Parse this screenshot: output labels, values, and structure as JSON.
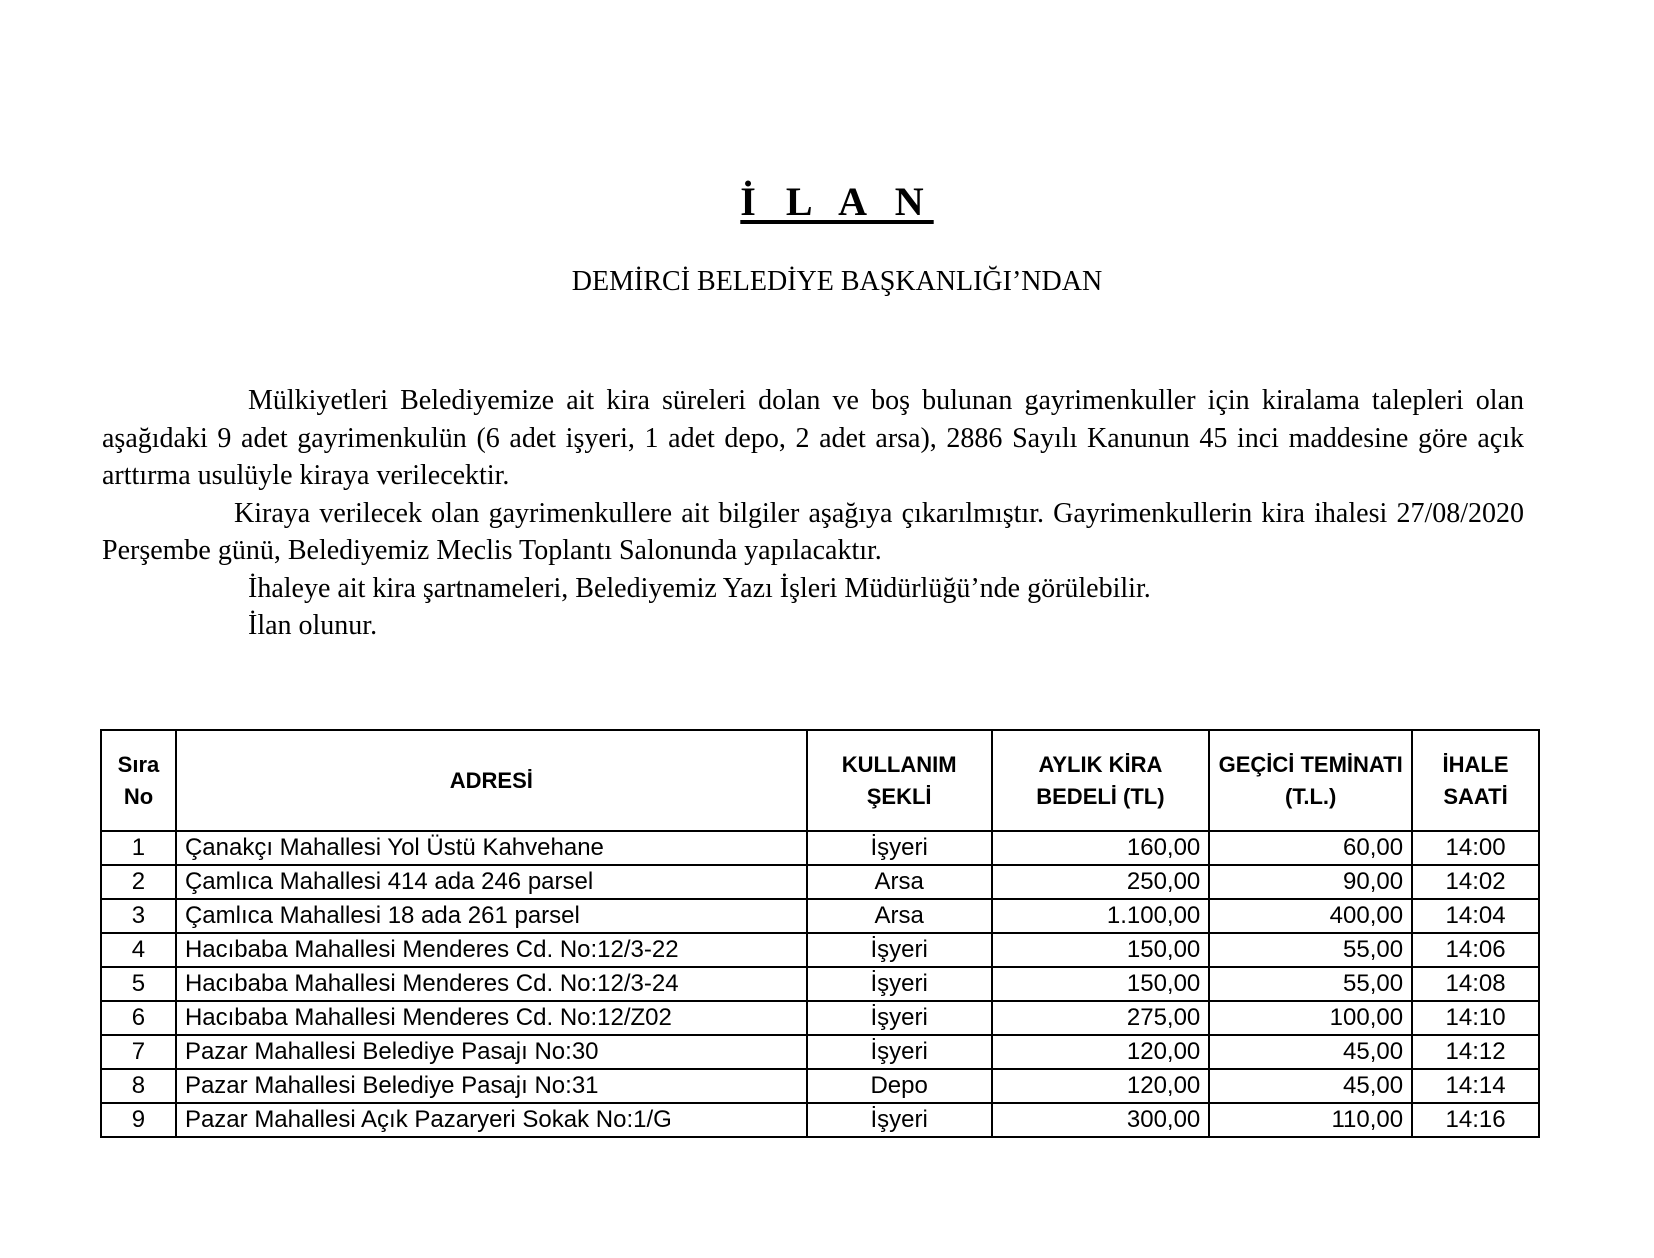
{
  "title": "İ L A N",
  "subtitle": "DEMİRCİ BELEDİYE BAŞKANLIĞI’NDAN",
  "paragraphs": [
    "Mülkiyetleri Belediyemize ait kira süreleri dolan ve boş bulunan gayrimenkuller için kiralama talepleri olan aşağıdaki 9 adet gayrimenkulün (6 adet işyeri, 1 adet depo, 2 adet arsa), 2886 Sayılı Kanunun 45 inci maddesine göre açık arttırma usulüyle kiraya verilecektir.",
    "Kiraya verilecek olan gayrimenkullere ait bilgiler aşağıya çıkarılmıştır. Gayrimenkullerin kira ihalesi 27/08/2020 Perşembe günü, Belediyemiz Meclis Toplantı Salonunda yapılacaktır.",
    "İhaleye ait kira şartnameleri, Belediyemiz Yazı İşleri Müdürlüğü’nde görülebilir.",
    "İlan olunur."
  ],
  "table": {
    "headers": [
      "Sıra No",
      "ADRESİ",
      "KULLANIM ŞEKLİ",
      "AYLIK KİRA BEDELİ (TL)",
      "GEÇİCİ TEMİNATI (T.L.)",
      "İHALE SAATİ"
    ],
    "rows": [
      [
        "1",
        "Çanakçı Mahallesi Yol Üstü Kahvehane",
        "İşyeri",
        "160,00",
        "60,00",
        "14:00"
      ],
      [
        "2",
        "Çamlıca Mahallesi 414 ada 246 parsel",
        "Arsa",
        "250,00",
        "90,00",
        "14:02"
      ],
      [
        "3",
        "Çamlıca Mahallesi 18 ada 261 parsel",
        "Arsa",
        "1.100,00",
        "400,00",
        "14:04"
      ],
      [
        "4",
        "Hacıbaba Mahallesi Menderes Cd. No:12/3-22",
        "İşyeri",
        "150,00",
        "55,00",
        "14:06"
      ],
      [
        "5",
        "Hacıbaba Mahallesi Menderes Cd. No:12/3-24",
        "İşyeri",
        "150,00",
        "55,00",
        "14:08"
      ],
      [
        "6",
        "Hacıbaba Mahallesi Menderes Cd. No:12/Z02",
        "İşyeri",
        "275,00",
        "100,00",
        "14:10"
      ],
      [
        "7",
        "Pazar Mahallesi Belediye Pasajı No:30",
        "İşyeri",
        "120,00",
        "45,00",
        "14:12"
      ],
      [
        "8",
        "Pazar Mahallesi Belediye Pasajı No:31",
        "Depo",
        "120,00",
        "45,00",
        "14:14"
      ],
      [
        "9",
        "Pazar Mahallesi Açık Pazaryeri Sokak No:1/G",
        "İşyeri",
        "300,00",
        "110,00",
        "14:16"
      ]
    ]
  }
}
